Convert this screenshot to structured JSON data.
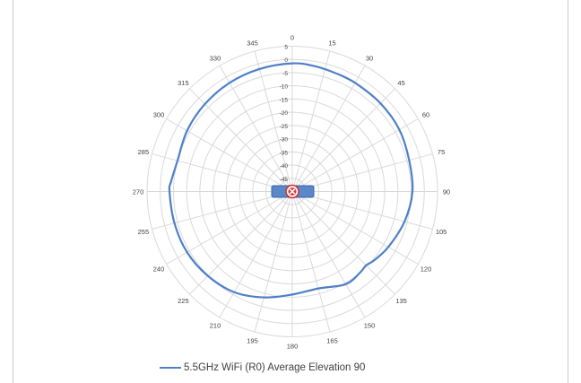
{
  "chart_data": {
    "type": "polar",
    "angle_unit": "degrees",
    "angle_direction": "clockwise",
    "angle_zero": "top",
    "angle_ticks": [
      "0",
      "15",
      "30",
      "45",
      "60",
      "75",
      "90",
      "105",
      "120",
      "135",
      "150",
      "165",
      "180",
      "195",
      "210",
      "225",
      "240",
      "255",
      "270",
      "285",
      "300",
      "315",
      "330",
      "345"
    ],
    "radial_ticks": [
      "5",
      "0",
      "-5",
      "-10",
      "-15",
      "-20",
      "-25",
      "-30",
      "-35",
      "-40",
      "-45"
    ],
    "radial_range": [
      -50,
      5
    ],
    "grid": true,
    "legend_position": "bottom",
    "series": [
      {
        "name": "5.5GHz WiFi (R0) Average Elevation 90",
        "color": "#4f7fc8",
        "theta": [
          0,
          10,
          20,
          30,
          45,
          60,
          75,
          90,
          105,
          120,
          130,
          135,
          140,
          150,
          165,
          180,
          195,
          210,
          225,
          240,
          255,
          270,
          275,
          285,
          300,
          315,
          330,
          345
        ],
        "r": [
          -1.5,
          -1.8,
          -2.3,
          -2.5,
          -2.8,
          -3.2,
          -4.2,
          -4.5,
          -6.0,
          -8.0,
          -9.5,
          -10.5,
          -10.0,
          -9.5,
          -12.0,
          -11.0,
          -8.5,
          -6.0,
          -4.8,
          -4.0,
          -3.8,
          -3.5,
          -4.0,
          -5.0,
          -4.0,
          -3.2,
          -2.5,
          -2.0
        ]
      }
    ]
  }
}
